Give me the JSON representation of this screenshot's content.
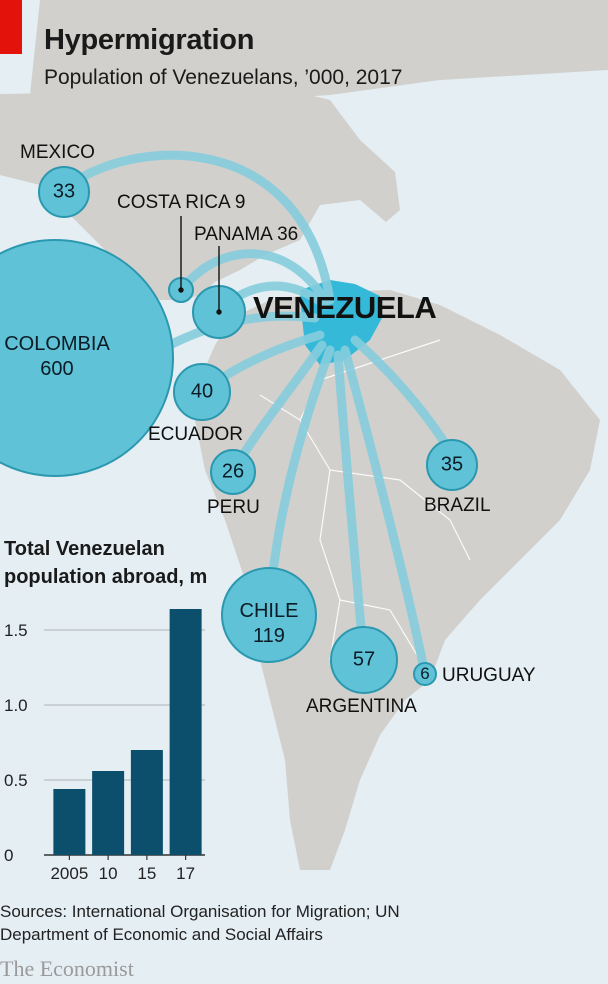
{
  "title": "Hypermigration",
  "subtitle": "Population of Venezuelans, ’000, 2017",
  "origin_label": "VENEZUELA",
  "colors": {
    "brand_red": "#e3120b",
    "sea": "#e4eef3",
    "land": "#d1d0cc",
    "bubble": "#5fc2d6",
    "bubble_stroke": "#2b98b0",
    "route": "#86cddd",
    "venezuela": "#34b9d8",
    "bar": "#0b4f6c"
  },
  "countries": [
    {
      "name": "MEXICO",
      "value": "33"
    },
    {
      "name": "COSTA RICA",
      "value": "9"
    },
    {
      "name": "PANAMA",
      "value": "36"
    },
    {
      "name": "COLOMBIA",
      "value": "600"
    },
    {
      "name": "ECUADOR",
      "value": "40"
    },
    {
      "name": "PERU",
      "value": "26"
    },
    {
      "name": "BRAZIL",
      "value": "35"
    },
    {
      "name": "CHILE",
      "value": "119"
    },
    {
      "name": "ARGENTINA",
      "value": "57"
    },
    {
      "name": "URUGUAY",
      "value": "6"
    }
  ],
  "chart_data": {
    "type": "bar",
    "title": "Total Venezuelan population abroad, m",
    "categories": [
      "2005",
      "10",
      "15",
      "17"
    ],
    "values": [
      0.44,
      0.56,
      0.7,
      1.64
    ],
    "ylim": [
      0,
      1.7
    ],
    "yticks": [
      0,
      0.5,
      1.0,
      1.5
    ],
    "ytick_labels": [
      "0",
      "0.5",
      "1.0",
      "1.5"
    ],
    "grid": true
  },
  "sources": "Sources: International Organisation for Migration; UN Department of Economic and Social Affairs",
  "brand": "The Economist"
}
